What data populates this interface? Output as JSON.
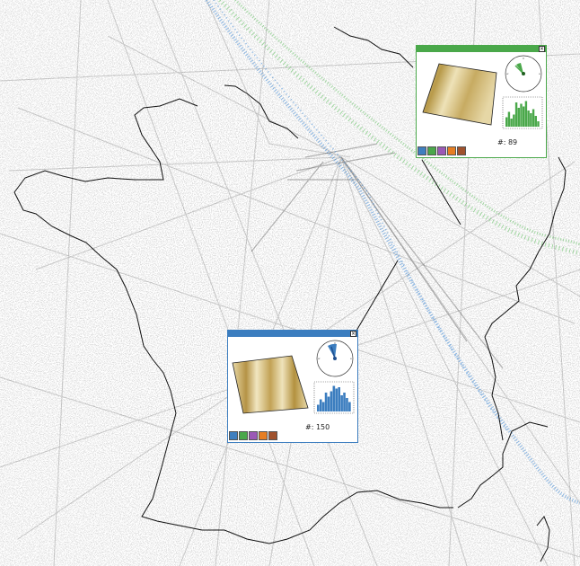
{
  "panels": [
    {
      "id": "green",
      "color": "#4aa84a",
      "count_label": "#: 89",
      "close_symbol": "×",
      "histogram": [
        0.35,
        0.55,
        0.3,
        0.45,
        0.9,
        0.7,
        0.85,
        0.75,
        0.95,
        0.6,
        0.5,
        0.65,
        0.4,
        0.2
      ],
      "compass_angle_deg": 305,
      "swatches": [
        "#3f7fbf",
        "#4aa84a",
        "#9b59b6",
        "#e67e22",
        "#a0522d"
      ]
    },
    {
      "id": "blue",
      "color": "#3b7dbf",
      "count_label": "#: 150",
      "close_symbol": "×",
      "histogram": [
        0.25,
        0.45,
        0.35,
        0.7,
        0.55,
        0.75,
        0.95,
        0.85,
        0.9,
        0.6,
        0.7,
        0.5,
        0.35
      ],
      "compass_angle_deg": 330,
      "swatches": [
        "#3f7fbf",
        "#4aa84a",
        "#9b59b6",
        "#e67e22",
        "#a0522d"
      ]
    }
  ]
}
